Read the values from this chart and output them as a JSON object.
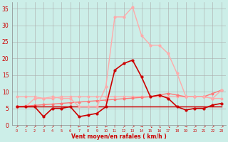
{
  "xlabel": "Vent moyen/en rafales ( km/h )",
  "x": [
    0,
    1,
    2,
    3,
    4,
    5,
    6,
    7,
    8,
    9,
    10,
    11,
    12,
    13,
    14,
    15,
    16,
    17,
    18,
    19,
    20,
    21,
    22,
    23
  ],
  "line_flat_dark": [
    5.5,
    5.5,
    5.5,
    5.5,
    5.5,
    5.5,
    5.5,
    5.5,
    5.5,
    5.5,
    5.5,
    5.5,
    5.5,
    5.5,
    5.5,
    5.5,
    5.5,
    5.5,
    5.5,
    5.5,
    5.5,
    5.5,
    5.5,
    5.5
  ],
  "line_flat_pink": [
    8.5,
    8.5,
    8.5,
    8.0,
    8.0,
    8.5,
    8.5,
    8.5,
    8.5,
    8.5,
    8.5,
    8.5,
    8.5,
    8.5,
    8.5,
    8.5,
    8.5,
    8.5,
    8.5,
    8.5,
    8.5,
    8.5,
    8.0,
    8.0
  ],
  "line_dark_spike": [
    5.5,
    5.5,
    5.5,
    2.5,
    5.0,
    5.0,
    5.5,
    2.5,
    3.0,
    3.5,
    5.5,
    16.5,
    18.5,
    19.5,
    14.5,
    8.5,
    9.0,
    8.0,
    5.5,
    4.5,
    5.0,
    5.0,
    6.0,
    6.5
  ],
  "line_light_spike": [
    5.5,
    5.5,
    8.0,
    8.0,
    8.5,
    8.0,
    8.0,
    5.5,
    5.5,
    5.5,
    11.5,
    32.5,
    32.5,
    35.5,
    27.0,
    24.0,
    24.0,
    21.5,
    15.5,
    8.5,
    8.5,
    8.5,
    8.0,
    10.5
  ],
  "line_slope": [
    5.5,
    5.7,
    5.9,
    6.1,
    6.3,
    6.5,
    6.7,
    6.9,
    7.1,
    7.3,
    7.5,
    7.7,
    7.9,
    8.1,
    8.3,
    8.5,
    9.0,
    9.5,
    9.0,
    8.5,
    8.5,
    8.5,
    9.5,
    10.5
  ],
  "line_extra_flat": [
    5.5,
    5.5,
    5.5,
    5.5,
    5.5,
    5.5,
    5.5,
    5.5,
    5.5,
    5.5,
    5.5,
    5.5,
    5.5,
    5.5,
    5.5,
    5.5,
    5.5,
    5.5,
    5.5,
    5.5,
    5.5,
    5.5,
    5.5,
    5.5
  ],
  "bg_color": "#cceee8",
  "grid_color": "#aaaaaa",
  "dark_red": "#cc0000",
  "light_red": "#ffaaaa",
  "mid_red": "#ff7777",
  "ylim": [
    0,
    37
  ],
  "yticks": [
    0,
    5,
    10,
    15,
    20,
    25,
    30,
    35
  ],
  "arrows": [
    "↗",
    "↗",
    "↗",
    "↗",
    "↗",
    "↑",
    "↑",
    "←",
    "←",
    "↓",
    "←",
    "↑",
    "↗",
    "↗",
    "→",
    "↘",
    "↘",
    "↘",
    "↗",
    "→",
    "↗",
    "↗",
    "↗",
    "↗"
  ],
  "tick_color": "#cc0000",
  "marker_dark": "o",
  "marker_light": "o"
}
